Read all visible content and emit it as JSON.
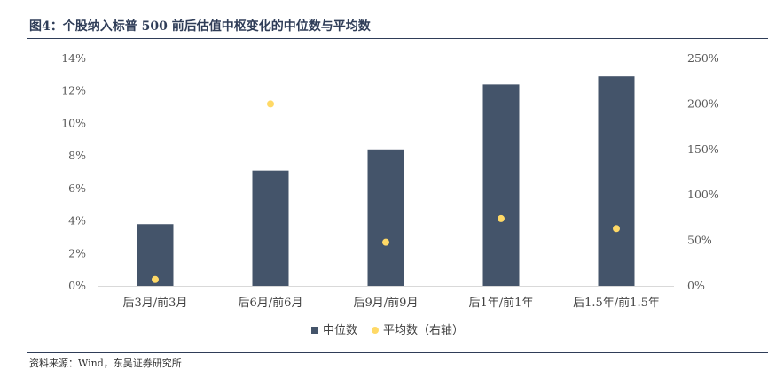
{
  "figure": {
    "title": "图4：个股纳入标普 500 前后估值中枢变化的中位数与平均数",
    "source": "资料来源：Wind，东吴证券研究所"
  },
  "chart_data": {
    "type": "bar",
    "categories": [
      "后3月/前3月",
      "后6月/前6月",
      "后9月/前9月",
      "后1年/前1年",
      "后1.5年/前1.5年"
    ],
    "series": [
      {
        "name": "中位数",
        "type": "bar",
        "axis": "left",
        "color": "#44546a",
        "values": [
          3.8,
          7.1,
          8.4,
          12.4,
          12.9
        ]
      },
      {
        "name": "平均数（右轴）",
        "type": "scatter",
        "axis": "right",
        "color": "#ffd966",
        "values": [
          7,
          200,
          48,
          74,
          63
        ]
      }
    ],
    "ylim": [
      0,
      14
    ],
    "yticks": [
      "0%",
      "2%",
      "4%",
      "6%",
      "8%",
      "10%",
      "12%",
      "14%"
    ],
    "y2lim": [
      0,
      250
    ],
    "y2ticks": [
      "0%",
      "50%",
      "100%",
      "150%",
      "200%",
      "250%"
    ],
    "grid": false,
    "legend": "bottom"
  }
}
